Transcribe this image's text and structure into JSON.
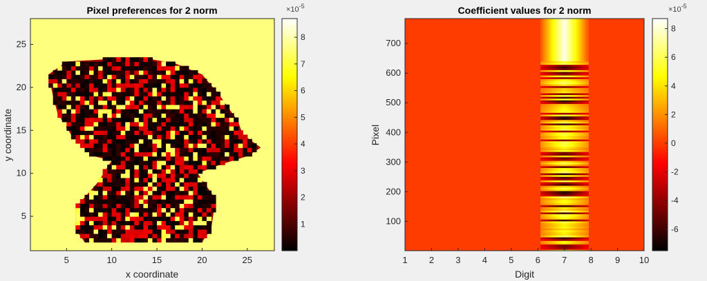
{
  "chart_data": [
    {
      "type": "heatmap",
      "title": "Pixel preferences for 2 norm",
      "xlabel": "x coordinate",
      "ylabel": "y coordinate",
      "xlim": [
        1,
        28
      ],
      "ylim": [
        1,
        28
      ],
      "xticks": [
        5,
        10,
        15,
        20,
        25
      ],
      "yticks": [
        5,
        10,
        15,
        20,
        25
      ],
      "colormap": "hot",
      "clim": [
        0,
        8.7
      ],
      "colorbar": {
        "ticks": [
          1,
          2,
          3,
          4,
          5,
          6,
          7,
          8
        ],
        "exponent_label": "×10",
        "exponent_power": "-5"
      },
      "background_value": 7.6,
      "notes": "Yellow (high) background; dark/red low-valued region shaped like a digit blob in the center."
    },
    {
      "type": "heatmap",
      "title": "Coefficient values for 2 norm",
      "xlabel": "Digit",
      "ylabel": "Pixel",
      "xlim": [
        1,
        10
      ],
      "ylim": [
        1,
        784
      ],
      "xticks": [
        1,
        2,
        3,
        4,
        5,
        6,
        7,
        8,
        9,
        10
      ],
      "yticks": [
        100,
        200,
        300,
        400,
        500,
        600,
        700
      ],
      "colormap": "hot",
      "clim": [
        -7.5,
        8.7
      ],
      "colorbar": {
        "ticks": [
          -6,
          -4,
          -2,
          0,
          2,
          4,
          6,
          8
        ],
        "exponent_label": "×10",
        "exponent_power": "-5"
      },
      "background_value": 0,
      "active_digit": 7,
      "notes": "All coefficients near 0 (orange) except a band around digit 7 showing alternating high/low stripes across pixels; top region (pixels ~640-784) uniformly high."
    }
  ],
  "colors": {
    "figure_bg": "#f0f0f0",
    "axes_border": "#262626",
    "hot_black": "#000000",
    "hot_red": "#ff0000",
    "hot_yellow": "#ffff00",
    "hot_white": "#ffffff"
  }
}
